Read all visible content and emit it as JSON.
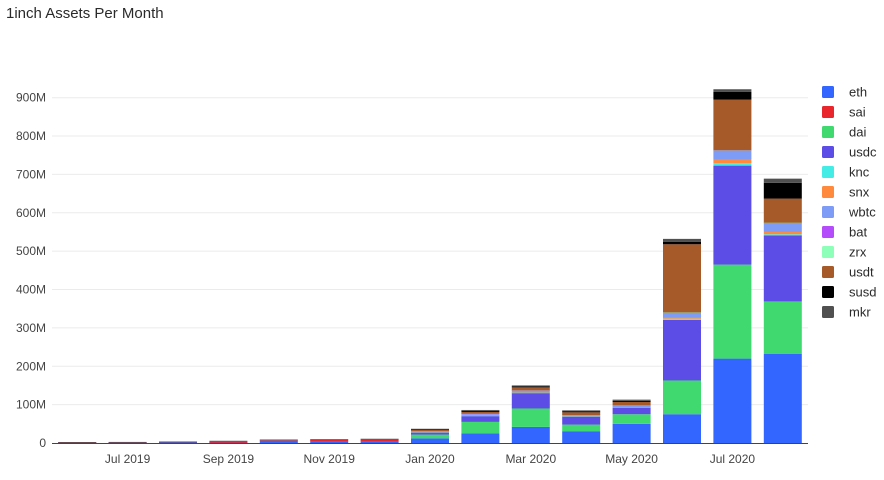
{
  "title": "1inch Assets Per Month",
  "chart_data": {
    "type": "bar",
    "stacked": true,
    "title": "1inch Assets Per Month",
    "xlabel": "",
    "ylabel": "",
    "ylim": [
      0,
      980000000
    ],
    "y_ticks": [
      0,
      100000000,
      200000000,
      300000000,
      400000000,
      500000000,
      600000000,
      700000000,
      800000000,
      900000000
    ],
    "y_tick_labels": [
      "0",
      "100M",
      "200M",
      "300M",
      "400M",
      "500M",
      "600M",
      "700M",
      "800M",
      "900M"
    ],
    "categories": [
      "2019-06",
      "2019-07",
      "2019-08",
      "2019-09",
      "2019-10",
      "2019-11",
      "2019-12",
      "2020-01",
      "2020-02",
      "2020-03",
      "2020-04",
      "2020-05",
      "2020-06",
      "2020-07",
      "2020-08"
    ],
    "x_tick_labels": [
      {
        "label": "Jul 2019",
        "category": "2019-07"
      },
      {
        "label": "Sep 2019",
        "category": "2019-09"
      },
      {
        "label": "Nov 2019",
        "category": "2019-11"
      },
      {
        "label": "Jan 2020",
        "category": "2020-01"
      },
      {
        "label": "Mar 2020",
        "category": "2020-03"
      },
      {
        "label": "May 2020",
        "category": "2020-05"
      },
      {
        "label": "Jul 2020",
        "category": "2020-07"
      }
    ],
    "legend_position": "right",
    "grid": true,
    "series": [
      {
        "name": "eth",
        "color": "#3366ff",
        "values": [
          0.3,
          0.5,
          1.5,
          0.5,
          6,
          3,
          5,
          12,
          25,
          42,
          30,
          50,
          75,
          220,
          232
        ]
      },
      {
        "name": "sai",
        "color": "#e8262b",
        "values": [
          0.2,
          0.2,
          0.2,
          3.2,
          1,
          5,
          4,
          0,
          0,
          0,
          0,
          0,
          0,
          0,
          0
        ]
      },
      {
        "name": "dai",
        "color": "#3fd96f",
        "values": [
          0,
          0,
          0,
          0,
          0,
          0,
          0,
          10,
          30,
          48,
          18,
          25,
          88,
          245,
          137
        ]
      },
      {
        "name": "usdc",
        "color": "#5b4de6",
        "values": [
          0,
          0,
          0,
          0,
          0,
          0,
          0,
          5,
          15,
          40,
          20,
          17,
          158,
          258,
          172
        ]
      },
      {
        "name": "knc",
        "color": "#44ece6",
        "values": [
          0,
          0,
          0,
          0,
          0,
          0,
          0,
          0.5,
          1,
          1,
          0.5,
          0.5,
          3,
          6,
          3
        ]
      },
      {
        "name": "snx",
        "color": "#ff8a3d",
        "values": [
          0,
          0,
          0,
          0,
          0,
          0,
          0,
          0.5,
          1,
          1,
          0.5,
          0.5,
          2,
          10,
          6
        ]
      },
      {
        "name": "wbtc",
        "color": "#7e9bf5",
        "values": [
          0,
          0,
          0,
          0,
          0,
          0,
          0,
          2,
          3,
          4,
          3,
          4,
          12,
          22,
          22
        ]
      },
      {
        "name": "bat",
        "color": "#b44cfb",
        "values": [
          0,
          0,
          0,
          0,
          0,
          0,
          0,
          0.5,
          0.5,
          0.5,
          0.5,
          0.5,
          1,
          1,
          1
        ]
      },
      {
        "name": "zrx",
        "color": "#8effb9",
        "values": [
          0,
          0,
          0,
          0,
          0,
          0,
          0,
          0.5,
          0.5,
          0.5,
          0.5,
          0.5,
          1,
          1,
          1
        ]
      },
      {
        "name": "usdt",
        "color": "#a65a2a",
        "values": [
          0,
          0,
          0,
          0,
          0,
          0,
          0,
          3,
          5,
          8,
          7,
          9,
          178,
          132,
          63
        ]
      },
      {
        "name": "susd",
        "color": "#000000",
        "values": [
          0,
          0,
          0,
          0,
          0,
          0,
          0,
          1,
          3,
          3,
          3,
          3,
          6,
          20,
          41
        ]
      },
      {
        "name": "mkr",
        "color": "#505050",
        "values": [
          0.6,
          0.6,
          0.6,
          0.6,
          1,
          2,
          2,
          2,
          2,
          2,
          2,
          3,
          8,
          7,
          11
        ]
      }
    ]
  }
}
